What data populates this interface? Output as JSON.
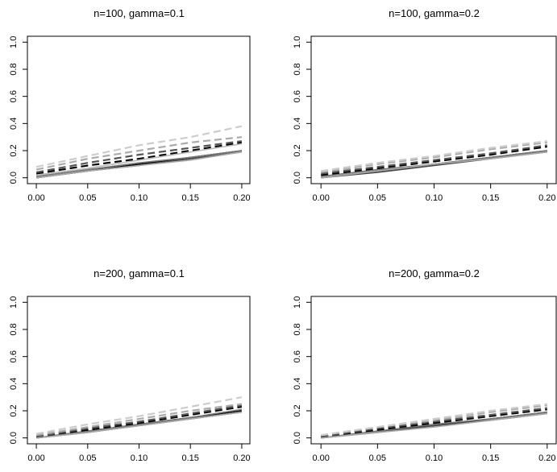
{
  "chart_data": [
    {
      "type": "line",
      "title": "n=100, gamma=0.1",
      "xlabel": "",
      "ylabel": "",
      "xlim": [
        0,
        0.2
      ],
      "ylim": [
        0,
        1
      ],
      "x_ticks": [
        "0.00",
        "0.05",
        "0.10",
        "0.15",
        "0.20"
      ],
      "y_ticks": [
        "0.0",
        "0.2",
        "0.4",
        "0.6",
        "0.8",
        "1.0"
      ],
      "grid": false,
      "x": [
        0,
        0.05,
        0.1,
        0.15,
        0.2
      ],
      "series": [
        {
          "values": [
            0.0,
            0.05,
            0.1,
            0.15,
            0.2
          ],
          "color": "#000000",
          "style": "solid"
        },
        {
          "values": [
            0.0,
            0.05,
            0.09,
            0.14,
            0.19
          ],
          "color": "#444444",
          "style": "solid"
        },
        {
          "values": [
            0.01,
            0.06,
            0.11,
            0.15,
            0.2
          ],
          "color": "#777777",
          "style": "solid"
        },
        {
          "values": [
            0.0,
            0.05,
            0.09,
            0.13,
            0.19
          ],
          "color": "#aaaaaa",
          "style": "solid"
        },
        {
          "values": [
            0.03,
            0.09,
            0.14,
            0.2,
            0.26
          ],
          "color": "#000000",
          "style": "dashed"
        },
        {
          "values": [
            0.04,
            0.11,
            0.17,
            0.22,
            0.27
          ],
          "color": "#555555",
          "style": "dashed"
        },
        {
          "values": [
            0.06,
            0.14,
            0.2,
            0.26,
            0.3
          ],
          "color": "#aaaaaa",
          "style": "dashed"
        },
        {
          "values": [
            0.08,
            0.16,
            0.24,
            0.3,
            0.38
          ],
          "color": "#cccccc",
          "style": "dashed"
        },
        {
          "values": [
            0.02,
            0.07,
            0.13,
            0.19,
            0.25
          ],
          "color": "#bbbbbb",
          "style": "solid"
        }
      ]
    },
    {
      "type": "line",
      "title": "n=100, gamma=0.2",
      "xlabel": "",
      "ylabel": "",
      "xlim": [
        0,
        0.2
      ],
      "ylim": [
        0,
        1
      ],
      "x_ticks": [
        "0.00",
        "0.05",
        "0.10",
        "0.15",
        "0.20"
      ],
      "y_ticks": [
        "0.0",
        "0.2",
        "0.4",
        "0.6",
        "0.8",
        "1.0"
      ],
      "grid": false,
      "x": [
        0,
        0.05,
        0.1,
        0.15,
        0.2
      ],
      "series": [
        {
          "values": [
            0.0,
            0.05,
            0.1,
            0.15,
            0.2
          ],
          "color": "#000000",
          "style": "solid"
        },
        {
          "values": [
            0.0,
            0.04,
            0.09,
            0.14,
            0.19
          ],
          "color": "#444444",
          "style": "solid"
        },
        {
          "values": [
            0.01,
            0.06,
            0.1,
            0.15,
            0.2
          ],
          "color": "#777777",
          "style": "solid"
        },
        {
          "values": [
            0.0,
            0.05,
            0.1,
            0.14,
            0.19
          ],
          "color": "#aaaaaa",
          "style": "solid"
        },
        {
          "values": [
            0.02,
            0.07,
            0.12,
            0.17,
            0.23
          ],
          "color": "#000000",
          "style": "dashed"
        },
        {
          "values": [
            0.03,
            0.08,
            0.13,
            0.18,
            0.24
          ],
          "color": "#555555",
          "style": "dashed"
        },
        {
          "values": [
            0.04,
            0.1,
            0.15,
            0.21,
            0.26
          ],
          "color": "#aaaaaa",
          "style": "dashed"
        },
        {
          "values": [
            0.05,
            0.11,
            0.16,
            0.22,
            0.27
          ],
          "color": "#cccccc",
          "style": "dashed"
        }
      ]
    },
    {
      "type": "line",
      "title": "n=200, gamma=0.1",
      "xlabel": "",
      "ylabel": "",
      "xlim": [
        0,
        0.2
      ],
      "ylim": [
        0,
        1
      ],
      "x_ticks": [
        "0.00",
        "0.05",
        "0.10",
        "0.15",
        "0.20"
      ],
      "y_ticks": [
        "0.0",
        "0.2",
        "0.4",
        "0.6",
        "0.8",
        "1.0"
      ],
      "grid": false,
      "x": [
        0,
        0.05,
        0.1,
        0.15,
        0.2
      ],
      "series": [
        {
          "values": [
            0.0,
            0.05,
            0.1,
            0.15,
            0.2
          ],
          "color": "#000000",
          "style": "solid"
        },
        {
          "values": [
            0.0,
            0.04,
            0.09,
            0.14,
            0.19
          ],
          "color": "#444444",
          "style": "solid"
        },
        {
          "values": [
            0.0,
            0.05,
            0.1,
            0.15,
            0.21
          ],
          "color": "#777777",
          "style": "solid"
        },
        {
          "values": [
            0.0,
            0.04,
            0.09,
            0.14,
            0.19
          ],
          "color": "#aaaaaa",
          "style": "solid"
        },
        {
          "values": [
            0.01,
            0.06,
            0.11,
            0.17,
            0.23
          ],
          "color": "#000000",
          "style": "dashed"
        },
        {
          "values": [
            0.01,
            0.07,
            0.12,
            0.18,
            0.24
          ],
          "color": "#555555",
          "style": "dashed"
        },
        {
          "values": [
            0.02,
            0.08,
            0.14,
            0.2,
            0.25
          ],
          "color": "#aaaaaa",
          "style": "dashed"
        },
        {
          "values": [
            0.03,
            0.1,
            0.16,
            0.23,
            0.3
          ],
          "color": "#cccccc",
          "style": "dashed"
        }
      ]
    },
    {
      "type": "line",
      "title": "n=200, gamma=0.2",
      "xlabel": "",
      "ylabel": "",
      "xlim": [
        0,
        0.2
      ],
      "ylim": [
        0,
        1
      ],
      "x_ticks": [
        "0.00",
        "0.05",
        "0.10",
        "0.15",
        "0.20"
      ],
      "y_ticks": [
        "0.0",
        "0.2",
        "0.4",
        "0.6",
        "0.8",
        "1.0"
      ],
      "grid": false,
      "x": [
        0,
        0.05,
        0.1,
        0.15,
        0.2
      ],
      "series": [
        {
          "values": [
            0.0,
            0.05,
            0.09,
            0.14,
            0.19
          ],
          "color": "#000000",
          "style": "solid"
        },
        {
          "values": [
            0.0,
            0.04,
            0.09,
            0.13,
            0.18
          ],
          "color": "#444444",
          "style": "solid"
        },
        {
          "values": [
            0.0,
            0.05,
            0.1,
            0.14,
            0.19
          ],
          "color": "#777777",
          "style": "solid"
        },
        {
          "values": [
            0.0,
            0.04,
            0.08,
            0.13,
            0.18
          ],
          "color": "#aaaaaa",
          "style": "solid"
        },
        {
          "values": [
            0.01,
            0.06,
            0.11,
            0.16,
            0.21
          ],
          "color": "#000000",
          "style": "dashed"
        },
        {
          "values": [
            0.01,
            0.07,
            0.12,
            0.17,
            0.22
          ],
          "color": "#555555",
          "style": "dashed"
        },
        {
          "values": [
            0.02,
            0.08,
            0.13,
            0.19,
            0.24
          ],
          "color": "#aaaaaa",
          "style": "dashed"
        },
        {
          "values": [
            0.02,
            0.08,
            0.14,
            0.2,
            0.25
          ],
          "color": "#cccccc",
          "style": "dashed"
        }
      ]
    }
  ]
}
